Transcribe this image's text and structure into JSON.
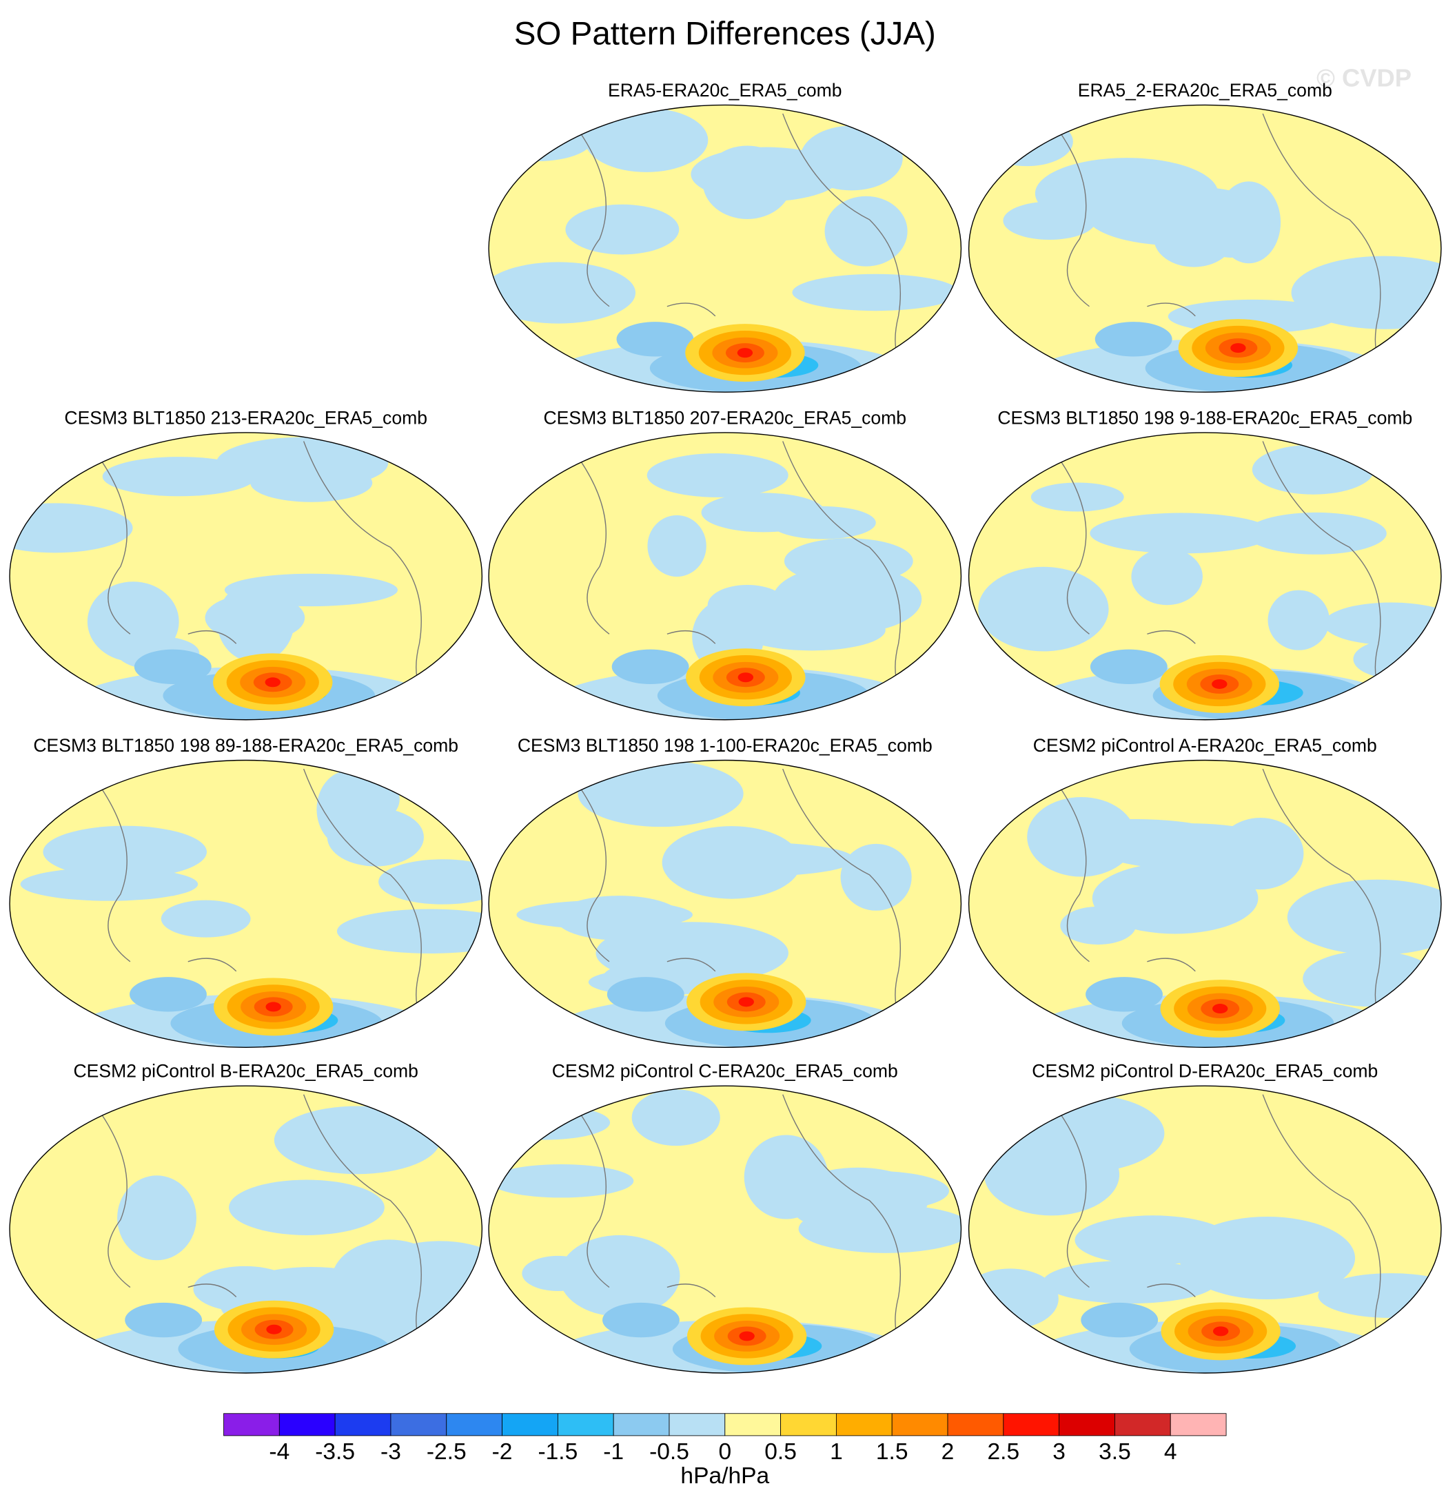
{
  "chart_data": {
    "type": "map-panels",
    "title": "SO Pattern Differences (JJA)",
    "watermark": "© CVDP",
    "panels": [
      {
        "title": "ERA5-ERA20c_ERA5_comb"
      },
      {
        "title": "ERA5_2-ERA20c_ERA5_comb"
      },
      {
        "title": "CESM3 BLT1850 213-ERA20c_ERA5_comb"
      },
      {
        "title": "CESM3 BLT1850 207-ERA20c_ERA5_comb"
      },
      {
        "title": "CESM3 BLT1850 198 9-188-ERA20c_ERA5_comb"
      },
      {
        "title": "CESM3 BLT1850 198 89-188-ERA20c_ERA5_comb"
      },
      {
        "title": "CESM3 BLT1850 198 1-100-ERA20c_ERA5_comb"
      },
      {
        "title": "CESM2 piControl A-ERA20c_ERA5_comb"
      },
      {
        "title": "CESM2 piControl B-ERA20c_ERA5_comb"
      },
      {
        "title": "CESM2 piControl C-ERA20c_ERA5_comb"
      },
      {
        "title": "CESM2 piControl D-ERA20c_ERA5_comb"
      }
    ],
    "colorbar": {
      "levels": [
        -4,
        -3.5,
        -3,
        -2.5,
        -2,
        -1.5,
        -1,
        -0.5,
        0,
        0.5,
        1,
        1.5,
        2,
        2.5,
        3,
        3.5,
        4
      ],
      "colors": [
        "#8a1ee8",
        "#2a00ff",
        "#1c3cf0",
        "#3c6ee2",
        "#2d87f0",
        "#14a5f5",
        "#2ebef5",
        "#8ccaf0",
        "#b8e0f4",
        "#fff89a",
        "#ffd733",
        "#ffad00",
        "#ff8a00",
        "#ff5a00",
        "#ff1400",
        "#dc0000",
        "#d22828",
        "#ffb4b4"
      ],
      "label": "hPa/hPa"
    }
  }
}
